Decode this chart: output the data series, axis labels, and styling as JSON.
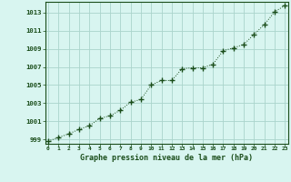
{
  "x": [
    0,
    1,
    2,
    3,
    4,
    5,
    6,
    7,
    8,
    9,
    10,
    11,
    12,
    13,
    14,
    15,
    16,
    17,
    18,
    19,
    20,
    21,
    22,
    23
  ],
  "y": [
    998.8,
    999.2,
    999.6,
    1000.1,
    1000.5,
    1001.3,
    1001.6,
    1002.2,
    1003.1,
    1003.4,
    1005.0,
    1005.5,
    1005.5,
    1006.8,
    1006.9,
    1006.9,
    1007.3,
    1008.8,
    1009.1,
    1009.5,
    1010.6,
    1011.7,
    1013.1,
    1013.8
  ],
  "line_color": "#1a4d1a",
  "marker": "+",
  "marker_size": 4,
  "bg_color": "#d8f5f0",
  "grid_color": "#aad4cc",
  "xlabel": "Graphe pression niveau de la mer (hPa)",
  "xlabel_color": "#1a4d1a",
  "tick_color": "#1a4d1a",
  "ytick_labels": [
    999,
    1001,
    1003,
    1005,
    1007,
    1009,
    1011,
    1013
  ],
  "xtick_labels": [
    0,
    1,
    2,
    3,
    4,
    5,
    6,
    7,
    8,
    9,
    10,
    11,
    12,
    13,
    14,
    15,
    16,
    17,
    18,
    19,
    20,
    21,
    22,
    23
  ],
  "ylim": [
    998.5,
    1014.2
  ],
  "xlim": [
    -0.3,
    23.3
  ],
  "figsize": [
    3.2,
    2.0
  ],
  "dpi": 100
}
